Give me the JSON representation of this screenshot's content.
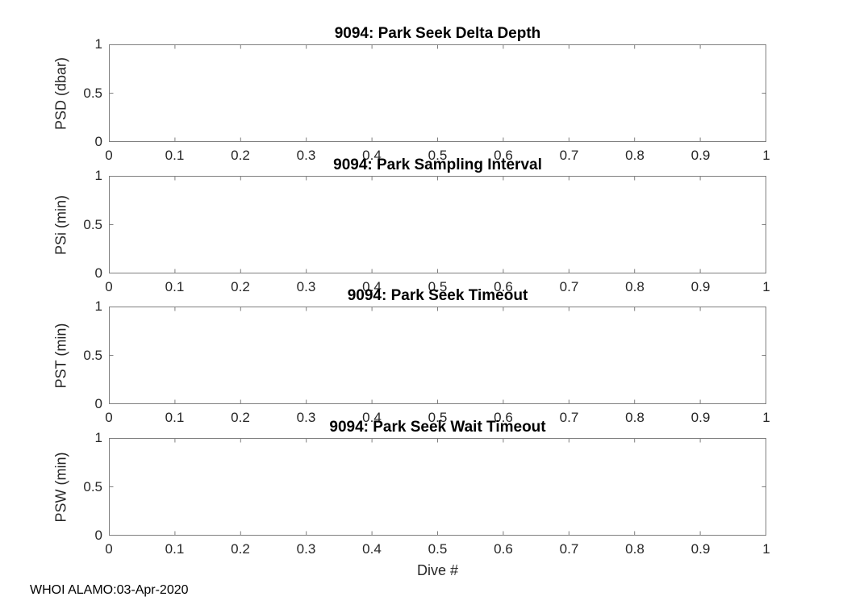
{
  "figure": {
    "footer": "WHOI ALAMO:03-Apr-2020"
  },
  "colors": {
    "axis": "#7f7f7f",
    "tick_text": "#262626",
    "title_text": "#000000"
  },
  "chart_data": [
    {
      "type": "line",
      "title": "9094: Park Seek Delta Depth",
      "ylabel": "PSD (dbar)",
      "xlabel": "",
      "xlim": [
        0,
        1
      ],
      "ylim": [
        0,
        1
      ],
      "xticks": [
        "0",
        "0.1",
        "0.2",
        "0.3",
        "0.4",
        "0.5",
        "0.6",
        "0.7",
        "0.8",
        "0.9",
        "1"
      ],
      "yticks": [
        "0",
        "0.5",
        "1"
      ],
      "grid": false,
      "legend": null,
      "series": []
    },
    {
      "type": "line",
      "title": "9094: Park Sampling Interval",
      "ylabel": "PSi (min)",
      "xlabel": "",
      "xlim": [
        0,
        1
      ],
      "ylim": [
        0,
        1
      ],
      "xticks": [
        "0",
        "0.1",
        "0.2",
        "0.3",
        "0.4",
        "0.5",
        "0.6",
        "0.7",
        "0.8",
        "0.9",
        "1"
      ],
      "yticks": [
        "0",
        "0.5",
        "1"
      ],
      "grid": false,
      "legend": null,
      "series": []
    },
    {
      "type": "line",
      "title": "9094: Park Seek Timeout",
      "ylabel": "PST (min)",
      "xlabel": "",
      "xlim": [
        0,
        1
      ],
      "ylim": [
        0,
        1
      ],
      "xticks": [
        "0",
        "0.1",
        "0.2",
        "0.3",
        "0.4",
        "0.5",
        "0.6",
        "0.7",
        "0.8",
        "0.9",
        "1"
      ],
      "yticks": [
        "0",
        "0.5",
        "1"
      ],
      "grid": false,
      "legend": null,
      "series": []
    },
    {
      "type": "line",
      "title": "9094: Park Seek Wait Timeout",
      "ylabel": "PSW (min)",
      "xlabel": "Dive #",
      "xlim": [
        0,
        1
      ],
      "ylim": [
        0,
        1
      ],
      "xticks": [
        "0",
        "0.1",
        "0.2",
        "0.3",
        "0.4",
        "0.5",
        "0.6",
        "0.7",
        "0.8",
        "0.9",
        "1"
      ],
      "yticks": [
        "0",
        "0.5",
        "1"
      ],
      "grid": false,
      "legend": null,
      "series": []
    }
  ]
}
